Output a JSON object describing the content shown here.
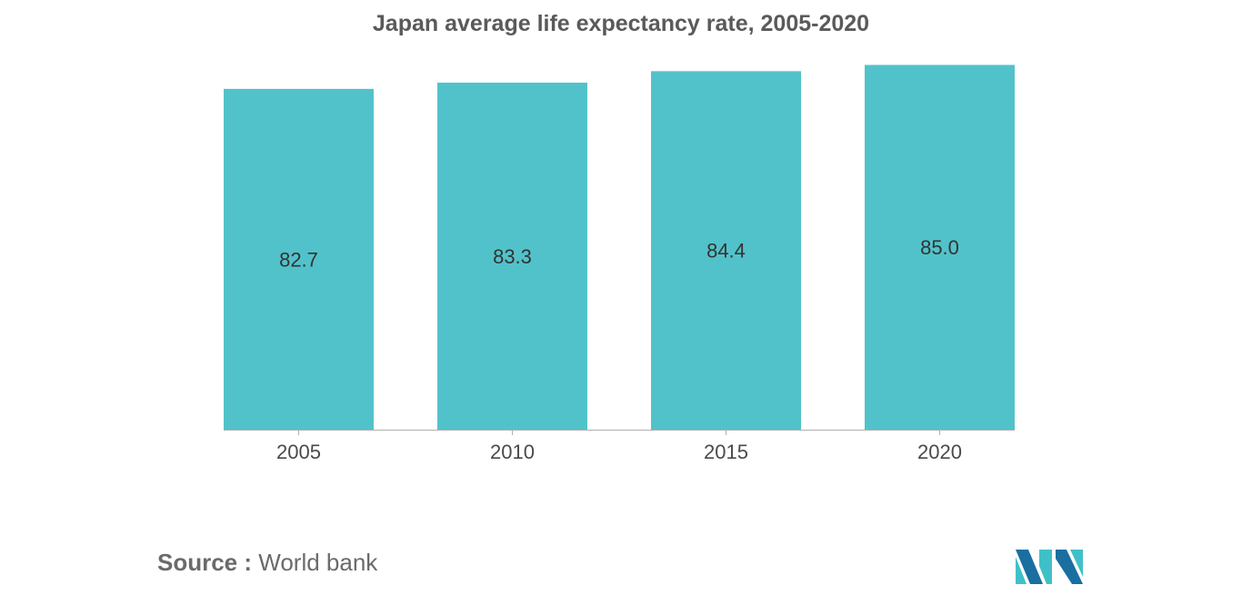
{
  "chart_data": {
    "type": "bar",
    "title": "Japan average life expectancy rate, 2005-2020",
    "categories": [
      "2005",
      "2010",
      "2015",
      "2020"
    ],
    "values": [
      82.7,
      83.3,
      84.4,
      85.0
    ],
    "value_labels": [
      "82.7",
      "83.3",
      "84.4",
      "85.0"
    ],
    "xlabel": "",
    "ylabel": "",
    "ylim": [
      50,
      86
    ],
    "grid": false,
    "legend": "none",
    "bar_color": "#52c2ca",
    "label_color": "#333333",
    "axis_color": "#b0b0b0"
  },
  "source": {
    "label": "Source :",
    "text": "World bank"
  },
  "logo": {
    "name": "mordor-intelligence-logo",
    "colors": [
      "#1a6fa0",
      "#3fc0c8"
    ]
  }
}
